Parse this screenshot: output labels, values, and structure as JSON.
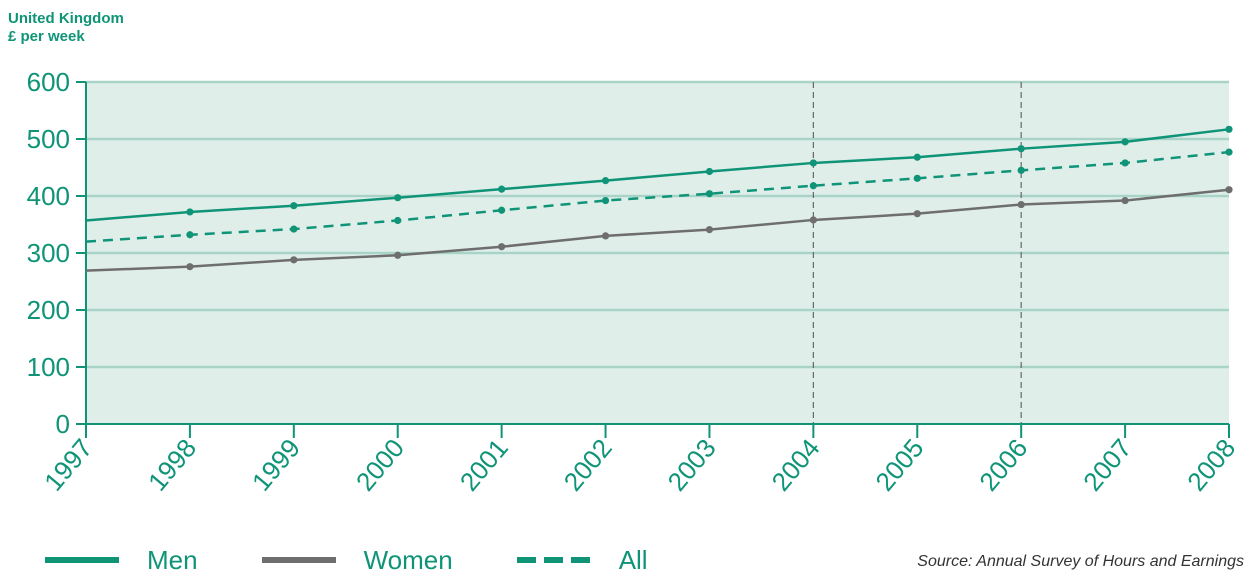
{
  "header": {
    "region": "United Kingdom",
    "unit": "£ per week"
  },
  "colors": {
    "accent": "#0f9478",
    "women": "#6e6e6e",
    "plot_bg": "#e0eeea",
    "grid": "#a9d3c7"
  },
  "chart_data": {
    "type": "line",
    "x": [
      "1997",
      "1998",
      "1999",
      "2000",
      "2001",
      "2002",
      "2003",
      "2004",
      "2005",
      "2006",
      "2007",
      "2008"
    ],
    "ylim": [
      0,
      600
    ],
    "yticks": [
      0,
      100,
      200,
      300,
      400,
      500,
      600
    ],
    "grid": true,
    "vertical_markers": [
      "2004",
      "2006"
    ],
    "series": [
      {
        "name": "Men",
        "style": "solid",
        "color": "#0f9478",
        "values": [
          357,
          372,
          383,
          397,
          412,
          427,
          443,
          458,
          468,
          483,
          495,
          517
        ]
      },
      {
        "name": "Women",
        "style": "solid",
        "color": "#6e6e6e",
        "values": [
          269,
          276,
          288,
          296,
          311,
          330,
          341,
          358,
          369,
          385,
          392,
          411
        ]
      },
      {
        "name": "All",
        "style": "dashed",
        "color": "#0f9478",
        "values": [
          320,
          332,
          342,
          357,
          375,
          392,
          404,
          418,
          431,
          445,
          458,
          477
        ]
      }
    ]
  },
  "legend": [
    {
      "label": "Men"
    },
    {
      "label": "Women"
    },
    {
      "label": "All"
    }
  ],
  "source": "Source: Annual Survey of Hours and Earnings"
}
